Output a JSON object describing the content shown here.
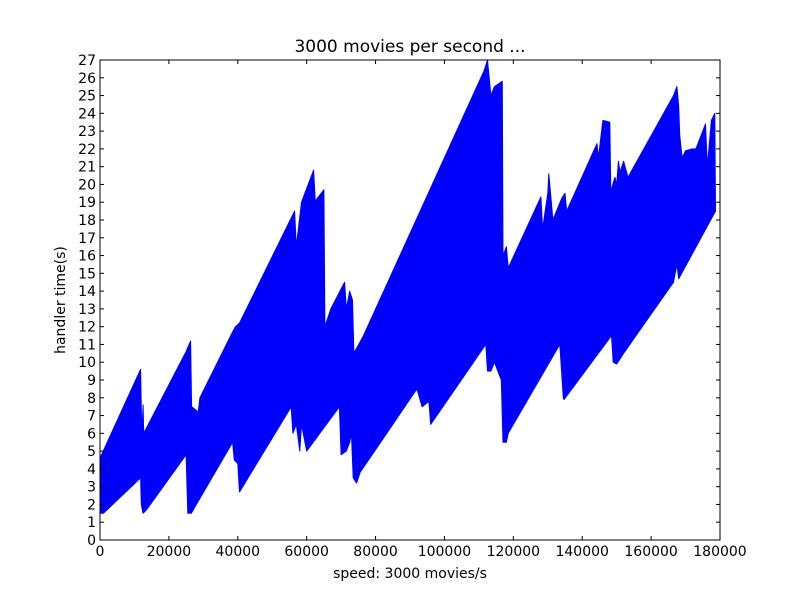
{
  "chart_data": {
    "type": "area",
    "title": "3000 movies per second ...",
    "xlabel": "speed: 3000 movies/s",
    "ylabel": "handler time(s)",
    "xlim": [
      0,
      180000
    ],
    "ylim": [
      0,
      27
    ],
    "xticks": [
      0,
      20000,
      40000,
      60000,
      80000,
      100000,
      120000,
      140000,
      160000,
      180000
    ],
    "yticks": [
      0,
      1,
      2,
      3,
      4,
      5,
      6,
      7,
      8,
      9,
      10,
      11,
      12,
      13,
      14,
      15,
      16,
      17,
      18,
      19,
      20,
      21,
      22,
      23,
      24,
      25,
      26,
      27
    ],
    "grid": false,
    "color": "#0000ff",
    "series": [
      {
        "upper": [
          [
            0,
            4.6
          ],
          [
            11800,
            9.6
          ],
          [
            12100,
            6.0
          ],
          [
            12500,
            7.6
          ],
          [
            12700,
            6.0
          ],
          [
            25000,
            10.6
          ],
          [
            26300,
            11.2
          ],
          [
            26600,
            7.5
          ],
          [
            28500,
            7.2
          ],
          [
            29000,
            8.0
          ],
          [
            38500,
            11.7
          ],
          [
            39300,
            12.0
          ],
          [
            40500,
            12.2
          ],
          [
            56500,
            18.5
          ],
          [
            57000,
            16.5
          ],
          [
            58500,
            19.0
          ],
          [
            62000,
            20.8
          ],
          [
            62500,
            19.0
          ],
          [
            63000,
            19.2
          ],
          [
            65000,
            19.7
          ],
          [
            65300,
            12.0
          ],
          [
            67000,
            13.0
          ],
          [
            71000,
            14.5
          ],
          [
            71500,
            13.0
          ],
          [
            72500,
            14.0
          ],
          [
            73300,
            13.5
          ],
          [
            73700,
            10.5
          ],
          [
            76500,
            11.5
          ],
          [
            111500,
            26.4
          ],
          [
            112500,
            27.0
          ],
          [
            113500,
            25.0
          ],
          [
            114500,
            25.5
          ],
          [
            116800,
            25.8
          ],
          [
            117000,
            16.0
          ],
          [
            118000,
            16.5
          ],
          [
            118500,
            15.3
          ],
          [
            128000,
            19.3
          ],
          [
            128500,
            17.5
          ],
          [
            130000,
            19.5
          ],
          [
            130300,
            20.6
          ],
          [
            131500,
            18.0
          ],
          [
            134000,
            19.2
          ],
          [
            135000,
            19.5
          ],
          [
            135500,
            18.5
          ],
          [
            144300,
            22.3
          ],
          [
            144700,
            21.5
          ],
          [
            146000,
            23.6
          ],
          [
            148000,
            23.5
          ],
          [
            148300,
            19.6
          ],
          [
            149500,
            20.4
          ],
          [
            150000,
            20.0
          ],
          [
            150500,
            21.3
          ],
          [
            151000,
            20.7
          ],
          [
            152000,
            21.3
          ],
          [
            153300,
            20.4
          ],
          [
            166500,
            25.0
          ],
          [
            167500,
            25.5
          ],
          [
            168000,
            24.4
          ],
          [
            168300,
            22.8
          ],
          [
            169000,
            21.5
          ],
          [
            170000,
            21.9
          ],
          [
            172000,
            22.0
          ],
          [
            173000,
            22.0
          ],
          [
            175800,
            23.4
          ],
          [
            176300,
            21.0
          ],
          [
            177500,
            23.6
          ],
          [
            178500,
            24.0
          ],
          [
            178700,
            18.5
          ]
        ],
        "lower": [
          [
            0,
            1.5
          ],
          [
            1000,
            1.5
          ],
          [
            11800,
            3.5
          ],
          [
            12000,
            2.0
          ],
          [
            12500,
            1.5
          ],
          [
            13500,
            1.7
          ],
          [
            25000,
            4.8
          ],
          [
            25500,
            1.5
          ],
          [
            26500,
            1.5
          ],
          [
            28000,
            2.0
          ],
          [
            38500,
            5.5
          ],
          [
            39000,
            4.5
          ],
          [
            40000,
            4.3
          ],
          [
            40500,
            2.7
          ],
          [
            55500,
            7.5
          ],
          [
            56000,
            6.0
          ],
          [
            57000,
            6.5
          ],
          [
            58000,
            5.0
          ],
          [
            58500,
            6.5
          ],
          [
            60000,
            5.0
          ],
          [
            69500,
            7.5
          ],
          [
            70000,
            4.8
          ],
          [
            71500,
            5.0
          ],
          [
            72500,
            5.5
          ],
          [
            73000,
            6.0
          ],
          [
            73500,
            3.5
          ],
          [
            74500,
            3.2
          ],
          [
            75500,
            3.8
          ],
          [
            92000,
            8.5
          ],
          [
            93500,
            7.5
          ],
          [
            95500,
            7.8
          ],
          [
            96000,
            6.5
          ],
          [
            112000,
            11.0
          ],
          [
            112500,
            9.5
          ],
          [
            113500,
            9.5
          ],
          [
            114500,
            10.0
          ],
          [
            116500,
            9.0
          ],
          [
            117000,
            5.5
          ],
          [
            118000,
            5.5
          ],
          [
            118500,
            6.0
          ],
          [
            133500,
            11.0
          ],
          [
            134500,
            8.0
          ],
          [
            134700,
            7.9
          ],
          [
            148500,
            11.5
          ],
          [
            149000,
            10.0
          ],
          [
            150000,
            9.9
          ],
          [
            152000,
            10.5
          ],
          [
            166500,
            14.5
          ],
          [
            167500,
            15.5
          ],
          [
            168000,
            14.7
          ],
          [
            178700,
            18.5
          ]
        ]
      }
    ]
  }
}
